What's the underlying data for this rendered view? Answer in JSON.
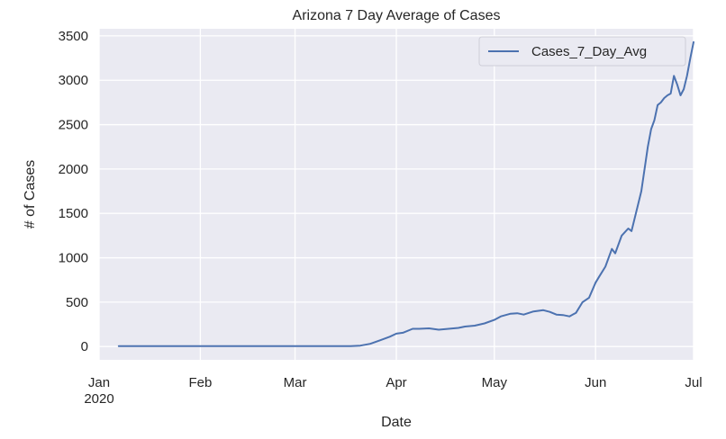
{
  "chart_data": {
    "type": "line",
    "title": "Arizona 7 Day Average of Cases",
    "xlabel": "Date",
    "ylabel": "# of Cases",
    "x_range": [
      "2020-01-01",
      "2020-07-01"
    ],
    "ylim": [
      -150,
      3580
    ],
    "x_ticks": [
      {
        "date": "2020-01-01",
        "label": "Jan",
        "sublabel": "2020"
      },
      {
        "date": "2020-02-01",
        "label": "Feb",
        "sublabel": ""
      },
      {
        "date": "2020-03-01",
        "label": "Mar",
        "sublabel": ""
      },
      {
        "date": "2020-04-01",
        "label": "Apr",
        "sublabel": ""
      },
      {
        "date": "2020-05-01",
        "label": "May",
        "sublabel": ""
      },
      {
        "date": "2020-06-01",
        "label": "Jun",
        "sublabel": ""
      },
      {
        "date": "2020-07-01",
        "label": "Jul",
        "sublabel": ""
      }
    ],
    "y_ticks": [
      0,
      500,
      1000,
      1500,
      2000,
      2500,
      3000,
      3500
    ],
    "grid": true,
    "legend_position": "top-right",
    "colors": {
      "plot_bg": "#eaeaf2",
      "grid": "#ffffff",
      "line": "#4c72b0"
    },
    "series": [
      {
        "name": "Cases_7_Day_Avg",
        "x": [
          "2020-01-07",
          "2020-02-01",
          "2020-03-01",
          "2020-03-10",
          "2020-03-15",
          "2020-03-18",
          "2020-03-21",
          "2020-03-24",
          "2020-03-27",
          "2020-03-30",
          "2020-04-01",
          "2020-04-03",
          "2020-04-06",
          "2020-04-08",
          "2020-04-11",
          "2020-04-14",
          "2020-04-17",
          "2020-04-20",
          "2020-04-22",
          "2020-04-25",
          "2020-04-28",
          "2020-05-01",
          "2020-05-03",
          "2020-05-06",
          "2020-05-08",
          "2020-05-10",
          "2020-05-13",
          "2020-05-16",
          "2020-05-18",
          "2020-05-20",
          "2020-05-22",
          "2020-05-24",
          "2020-05-26",
          "2020-05-28",
          "2020-05-30",
          "2020-06-01",
          "2020-06-02",
          "2020-06-04",
          "2020-06-06",
          "2020-06-07",
          "2020-06-09",
          "2020-06-11",
          "2020-06-12",
          "2020-06-14",
          "2020-06-15",
          "2020-06-16",
          "2020-06-17",
          "2020-06-18",
          "2020-06-19",
          "2020-06-20",
          "2020-06-21",
          "2020-06-22",
          "2020-06-23",
          "2020-06-24",
          "2020-06-25",
          "2020-06-26",
          "2020-06-27",
          "2020-06-28",
          "2020-06-29",
          "2020-06-30",
          "2020-07-01"
        ],
        "values": [
          5,
          5,
          5,
          5,
          5,
          5,
          10,
          30,
          70,
          110,
          145,
          155,
          200,
          200,
          205,
          190,
          200,
          210,
          225,
          235,
          260,
          300,
          340,
          370,
          375,
          360,
          395,
          410,
          390,
          360,
          355,
          340,
          380,
          500,
          550,
          720,
          780,
          900,
          1100,
          1050,
          1250,
          1330,
          1300,
          1600,
          1750,
          2000,
          2250,
          2450,
          2550,
          2720,
          2750,
          2800,
          2830,
          2850,
          3050,
          2950,
          2830,
          2900,
          3050,
          3250,
          3430
        ]
      }
    ]
  }
}
